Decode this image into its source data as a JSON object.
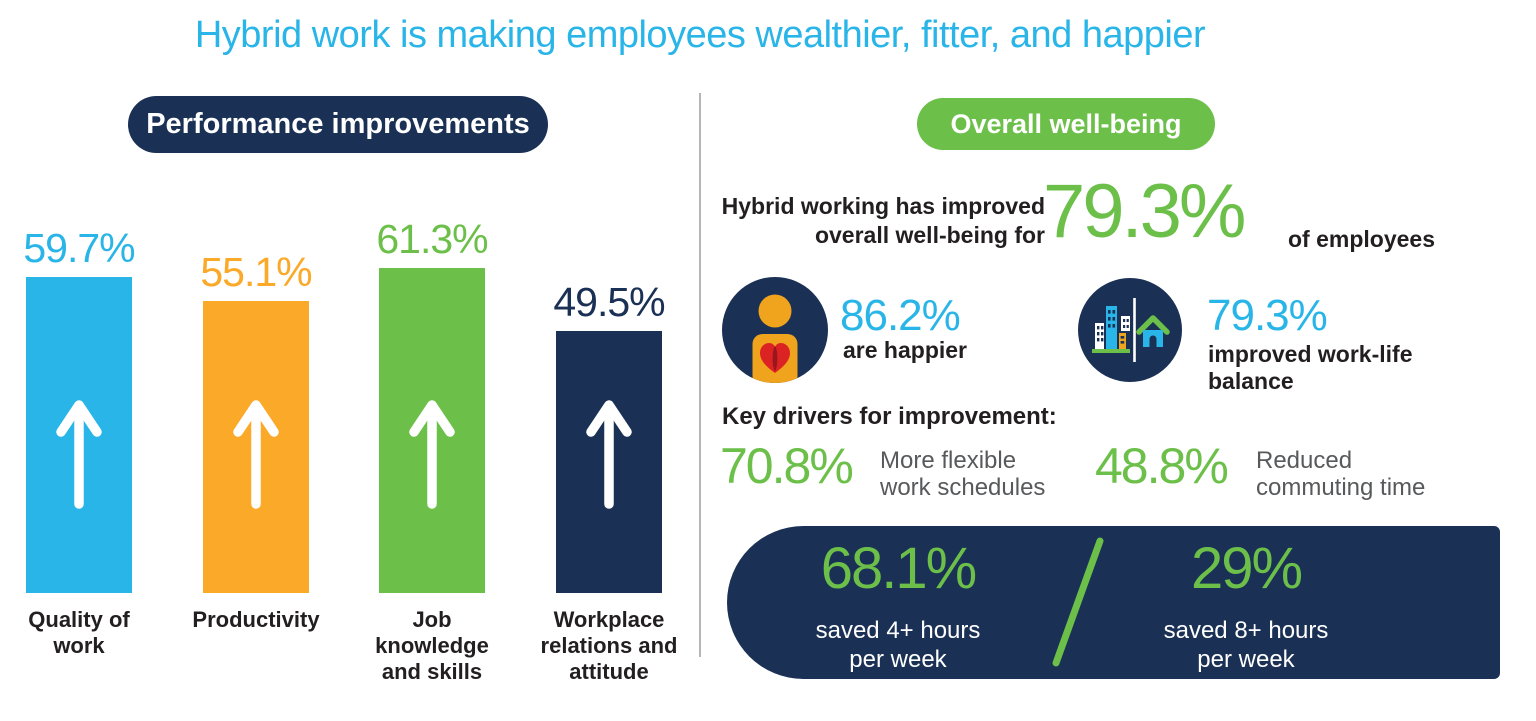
{
  "title": "Hybrid work is making employees wealthier, fitter, and happier",
  "colors": {
    "cyan": "#29b5e8",
    "orange": "#faa928",
    "green": "#6cc04a",
    "navy": "#1a3055",
    "text_dark": "#231f20",
    "text_gray": "#58595b",
    "divider_gray": "#b5b5b5",
    "heart_red": "#dc2323",
    "heart_dark_red": "#9b151c",
    "icon_yellow": "#f0a31c",
    "white": "#ffffff"
  },
  "left_panel": {
    "header": "Performance improvements",
    "bars": [
      {
        "value_label": "59.7%",
        "label_lines": [
          "Quality of",
          "work",
          ""
        ]
      },
      {
        "value_label": "55.1%",
        "label_lines": [
          "Productivity",
          "",
          ""
        ]
      },
      {
        "value_label": "61.3%",
        "label_lines": [
          "Job",
          "knowledge",
          "and skills"
        ]
      },
      {
        "value_label": "49.5%",
        "label_lines": [
          "Workplace",
          "relations and",
          "attitude"
        ]
      }
    ]
  },
  "right_panel": {
    "header": "Overall well-being",
    "intro": {
      "line1": "Hybrid working has improved",
      "line2": "overall well-being for",
      "stat": "79.3%",
      "suffix": "of employees"
    },
    "wellbeing_stats": [
      {
        "icon": "person-heart",
        "value": "86.2%",
        "label_lines": [
          "are happier",
          ""
        ]
      },
      {
        "icon": "city-home",
        "value": "79.3%",
        "label_lines": [
          "improved work-life",
          "balance"
        ]
      }
    ],
    "key_drivers": {
      "heading": "Key drivers for improvement:",
      "items": [
        {
          "value": "70.8%",
          "label_lines": [
            "More flexible",
            "work schedules"
          ]
        },
        {
          "value": "48.8%",
          "label_lines": [
            "Reduced",
            "commuting time"
          ]
        }
      ]
    },
    "time_saved": {
      "items": [
        {
          "value": "68.1%",
          "label_lines": [
            "saved 4+ hours",
            "per week"
          ]
        },
        {
          "value": "29%",
          "label_lines": [
            "saved 8+ hours",
            "per week"
          ]
        }
      ]
    }
  },
  "chart_data": {
    "type": "bar",
    "title": "Performance improvements",
    "categories": [
      "Quality of work",
      "Productivity",
      "Job knowledge and skills",
      "Workplace relations and attitude"
    ],
    "values": [
      59.7,
      55.1,
      61.3,
      49.5
    ],
    "unit": "%",
    "value_labels": [
      "59.7%",
      "55.1%",
      "61.3%",
      "49.5%"
    ],
    "bar_colors": [
      "#29b5e8",
      "#faa928",
      "#6cc04a",
      "#1a3055"
    ],
    "annotation": "white up arrow inside each bar",
    "ylim": [
      0,
      100
    ],
    "grid": false,
    "legend": false
  }
}
